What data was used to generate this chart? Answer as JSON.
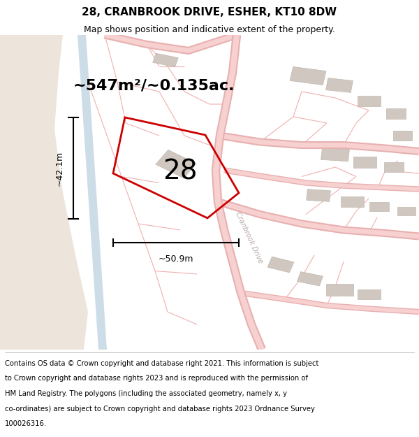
{
  "title_line1": "28, CRANBROOK DRIVE, ESHER, KT10 8DW",
  "title_line2": "Map shows position and indicative extent of the property.",
  "footer_lines": [
    "Contains OS data © Crown copyright and database right 2021. This information is subject",
    "to Crown copyright and database rights 2023 and is reproduced with the permission of",
    "HM Land Registry. The polygons (including the associated geometry, namely x, y",
    "co-ordinates) are subject to Crown copyright and database rights 2023 Ordnance Survey",
    "100026316."
  ],
  "bg_main_color": "#ffffff",
  "bg_beige_color": "#ede5db",
  "bg_blue_color": "#ccdde8",
  "road_fill_color": "#f7d0d0",
  "road_edge_color": "#e8b0b0",
  "plot_line_color": "#f0b0b0",
  "building_fill_color": "#d0c8c0",
  "building_edge_color": "#c0b8b0",
  "highlight_color": "#cc0000",
  "area_text": "~547m²/~0.135ac.",
  "dim_v_text": "~42.1m",
  "dim_h_text": "~50.9m",
  "street_label": "Cranbrook Drive",
  "label_28": "28",
  "title_fontsize": 11,
  "subtitle_fontsize": 9,
  "footer_fontsize": 7.2,
  "area_fontsize": 16,
  "dim_fontsize": 9,
  "label_fontsize": 28,
  "street_fontsize": 7
}
